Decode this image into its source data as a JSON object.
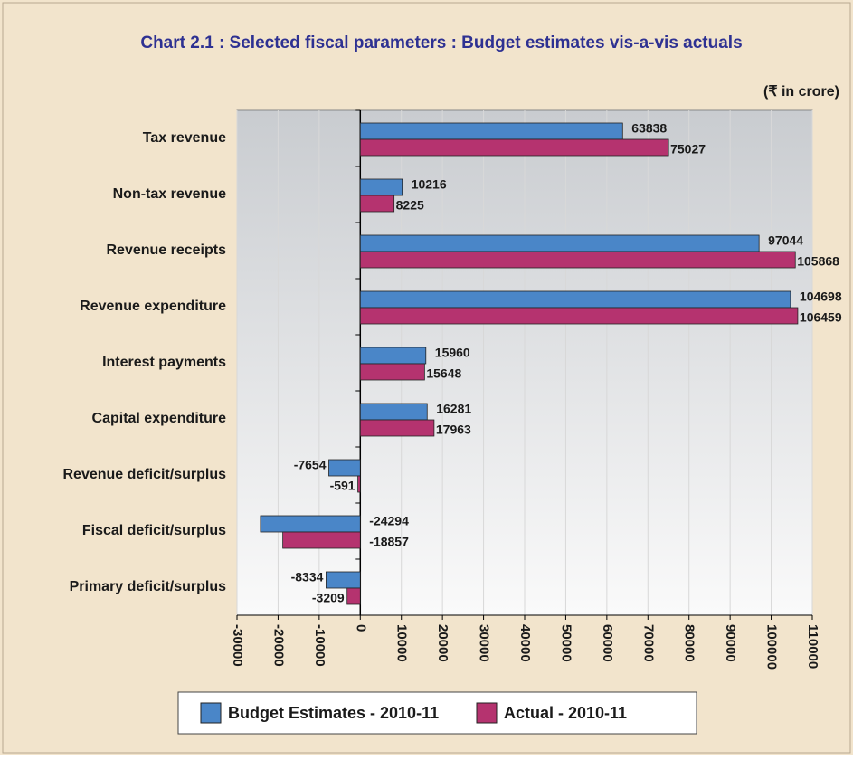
{
  "chart_data": {
    "type": "hbar",
    "title": "Chart 2.1 : Selected fiscal parameters : Budget estimates vis-a-vis actuals",
    "unit_label": "(₹ in crore)",
    "categories": [
      "Tax revenue",
      "Non-tax revenue",
      "Revenue receipts",
      "Revenue expenditure",
      "Interest payments",
      "Capital expenditure",
      "Revenue deficit/surplus",
      "Fiscal deficit/surplus",
      "Primary deficit/surplus"
    ],
    "series": [
      {
        "name": "Budget Estimates - 2010-11",
        "color": "#4a86c8",
        "values": [
          63838,
          10216,
          97044,
          104698,
          15960,
          16281,
          -7654,
          -24294,
          -8334
        ]
      },
      {
        "name": "Actual - 2010-11",
        "color": "#b5336f",
        "values": [
          75027,
          8225,
          105868,
          106459,
          15648,
          17963,
          -591,
          -18857,
          -3209
        ]
      }
    ],
    "xlim": [
      -30000,
      110000
    ],
    "xticks": [
      -30000,
      -20000,
      -10000,
      0,
      10000,
      20000,
      30000,
      40000,
      50000,
      60000,
      70000,
      80000,
      90000,
      100000,
      110000
    ],
    "grid": true
  }
}
